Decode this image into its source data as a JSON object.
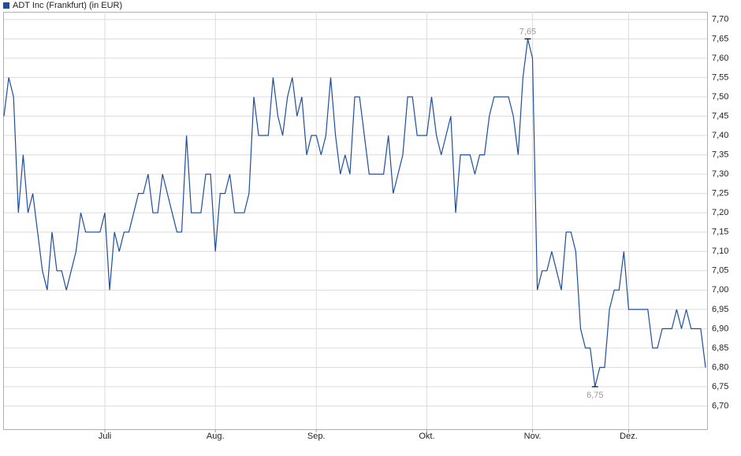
{
  "chart_data": {
    "type": "line",
    "categories": [
      null,
      null,
      null,
      null,
      null,
      null,
      null,
      null,
      null,
      null,
      null,
      null,
      null,
      null,
      null,
      null,
      null,
      null,
      null,
      null,
      null,
      "Juli",
      null,
      null,
      null,
      null,
      null,
      null,
      null,
      null,
      null,
      null,
      null,
      null,
      null,
      null,
      null,
      null,
      null,
      null,
      null,
      null,
      null,
      null,
      "Aug.",
      null,
      null,
      null,
      null,
      null,
      null,
      null,
      null,
      null,
      null,
      null,
      null,
      null,
      null,
      null,
      null,
      null,
      null,
      null,
      null,
      "Sep.",
      null,
      null,
      null,
      null,
      null,
      null,
      null,
      null,
      null,
      null,
      null,
      null,
      null,
      null,
      null,
      null,
      null,
      null,
      null,
      null,
      null,
      null,
      "Okt.",
      null,
      null,
      null,
      null,
      null,
      null,
      null,
      null,
      null,
      null,
      null,
      null,
      null,
      null,
      null,
      null,
      null,
      null,
      null,
      null,
      null,
      "Nov.",
      null,
      null,
      null,
      null,
      null,
      null,
      null,
      null,
      null,
      null,
      null,
      null,
      null,
      null,
      null,
      null,
      null,
      null,
      null,
      "Dez.",
      null,
      null,
      null,
      null,
      null,
      null,
      null,
      null,
      null,
      null,
      null,
      null,
      null,
      null,
      null,
      null
    ],
    "series": [
      {
        "name": "ADT Inc (Frankfurt) (in EUR)",
        "color": "#1f4f9c",
        "values": [
          7.45,
          7.55,
          7.5,
          7.2,
          7.35,
          7.2,
          7.25,
          7.15,
          7.05,
          7.0,
          7.15,
          7.05,
          7.05,
          7.0,
          7.05,
          7.1,
          7.2,
          7.15,
          7.15,
          7.15,
          7.15,
          7.2,
          7.0,
          7.15,
          7.1,
          7.15,
          7.15,
          7.2,
          7.25,
          7.25,
          7.3,
          7.2,
          7.2,
          7.3,
          7.25,
          7.2,
          7.15,
          7.15,
          7.4,
          7.2,
          7.2,
          7.2,
          7.3,
          7.3,
          7.1,
          7.25,
          7.25,
          7.3,
          7.2,
          7.2,
          7.2,
          7.25,
          7.5,
          7.4,
          7.4,
          7.4,
          7.55,
          7.45,
          7.4,
          7.5,
          7.55,
          7.45,
          7.5,
          7.35,
          7.4,
          7.4,
          7.35,
          7.4,
          7.55,
          7.4,
          7.3,
          7.35,
          7.3,
          7.5,
          7.5,
          7.4,
          7.3,
          7.3,
          7.3,
          7.3,
          7.4,
          7.25,
          7.3,
          7.35,
          7.5,
          7.5,
          7.4,
          7.4,
          7.4,
          7.5,
          7.4,
          7.35,
          7.4,
          7.45,
          7.2,
          7.35,
          7.35,
          7.35,
          7.3,
          7.35,
          7.35,
          7.45,
          7.5,
          7.5,
          7.5,
          7.5,
          7.45,
          7.35,
          7.55,
          7.65,
          7.6,
          7.0,
          7.05,
          7.05,
          7.1,
          7.05,
          7.0,
          7.15,
          7.15,
          7.1,
          6.9,
          6.85,
          6.85,
          6.75,
          6.8,
          6.8,
          6.95,
          7.0,
          7.0,
          7.1,
          6.95,
          6.95,
          6.95,
          6.95,
          6.95,
          6.85,
          6.85,
          6.9,
          6.9,
          6.9,
          6.95,
          6.9,
          6.95,
          6.9,
          6.9,
          6.9,
          6.8
        ]
      }
    ],
    "annotations": [
      {
        "text": "7,65",
        "value": 7.65
      },
      {
        "text": "6,75",
        "value": 6.75
      }
    ],
    "ylim": [
      6.64,
      7.72
    ],
    "yticks": [
      {
        "value": 6.7,
        "label": "6,70"
      },
      {
        "value": 6.75,
        "label": "6,75"
      },
      {
        "value": 6.8,
        "label": "6,80"
      },
      {
        "value": 6.85,
        "label": "6,85"
      },
      {
        "value": 6.9,
        "label": "6,90"
      },
      {
        "value": 6.95,
        "label": "6,95"
      },
      {
        "value": 7.0,
        "label": "7,00"
      },
      {
        "value": 7.05,
        "label": "7,05"
      },
      {
        "value": 7.1,
        "label": "7,10"
      },
      {
        "value": 7.15,
        "label": "7,15"
      },
      {
        "value": 7.2,
        "label": "7,20"
      },
      {
        "value": 7.25,
        "label": "7,25"
      },
      {
        "value": 7.3,
        "label": "7,30"
      },
      {
        "value": 7.35,
        "label": "7,35"
      },
      {
        "value": 7.4,
        "label": "7,40"
      },
      {
        "value": 7.45,
        "label": "7,45"
      },
      {
        "value": 7.5,
        "label": "7,50"
      },
      {
        "value": 7.55,
        "label": "7,55"
      },
      {
        "value": 7.6,
        "label": "7,60"
      },
      {
        "value": 7.65,
        "label": "7,65"
      },
      {
        "value": 7.7,
        "label": "7,70"
      }
    ],
    "grid": true
  }
}
